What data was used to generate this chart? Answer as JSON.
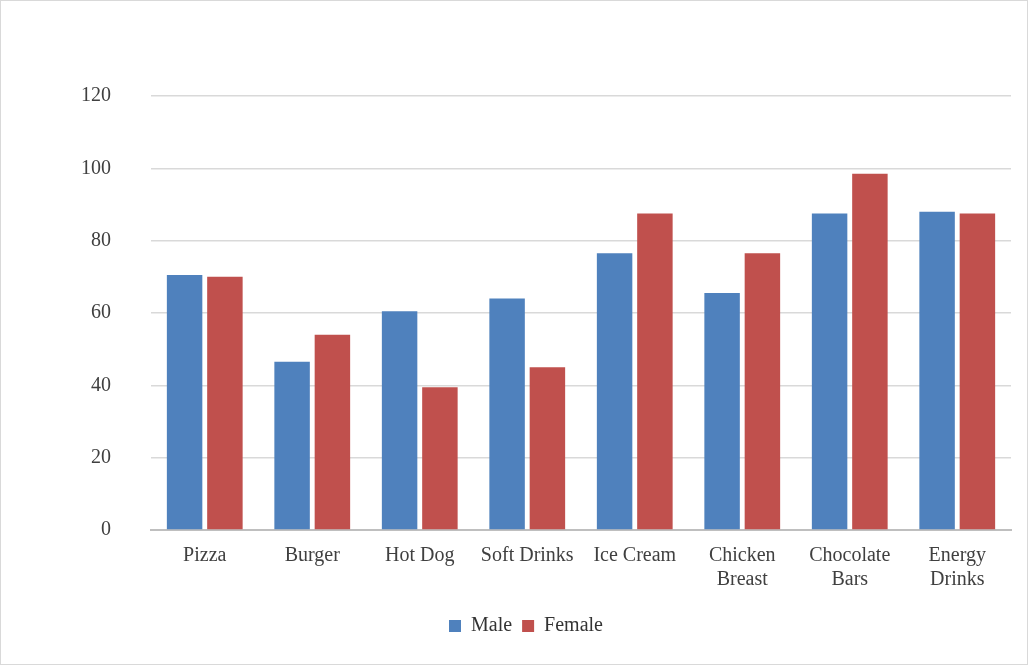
{
  "chart_data": {
    "type": "bar",
    "categories": [
      "Pizza",
      "Burger",
      "Hot Dog",
      "Soft Drinks",
      "Ice Cream",
      "Chicken Breast",
      "Chocolate Bars",
      "Energy Drinks"
    ],
    "series": [
      {
        "name": "Male",
        "color": "#4f81bd",
        "values": [
          70.5,
          46.5,
          60.5,
          64,
          76.5,
          65.5,
          87.5,
          88
        ]
      },
      {
        "name": "Female",
        "color": "#c0504d",
        "values": [
          70,
          54,
          39.5,
          45,
          87.5,
          76.5,
          98.5,
          87.5
        ]
      }
    ],
    "ylim": [
      0,
      120
    ],
    "yticks": [
      0,
      20,
      40,
      60,
      80,
      100,
      120
    ],
    "grid": "y",
    "legend": "bottom"
  }
}
